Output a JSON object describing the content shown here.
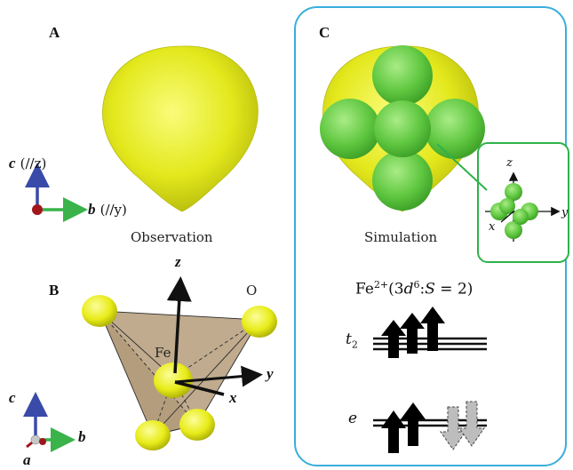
{
  "panel_a": {
    "letter": "A",
    "caption": "Observation",
    "axis_c": "c",
    "axis_c_note": "(//z)",
    "axis_b": "b",
    "axis_b_note": "(//y)",
    "colors": {
      "orbital": "#e6ea1e",
      "axis_vertical": "#3a4aa8",
      "axis_horizontal": "#39b34a",
      "origin": "#a0161c"
    }
  },
  "panel_b": {
    "letter": "B",
    "label_fe": "Fe",
    "label_o": "O",
    "axis_z": "z",
    "axis_y": "y",
    "axis_x": "x",
    "axis_c": "c",
    "axis_b": "b",
    "axis_a": "a",
    "colors": {
      "tetrahedron": "#b9a282",
      "atom": "#f0f020"
    }
  },
  "panel_c": {
    "letter": "C",
    "caption": "Simulation",
    "inset": {
      "axis_z": "z",
      "axis_y": "y",
      "axis_x": "x"
    },
    "configuration": {
      "ion": "Fe",
      "charge": "2+",
      "open": "(3",
      "orbital": "d",
      "count": "6",
      "sep": ":",
      "spin": "S",
      "equals": " = 2)"
    },
    "level_t2": {
      "label": "t",
      "sub": "2"
    },
    "level_e": {
      "label": "e"
    },
    "colors": {
      "frame": "#3aaedc",
      "inset_frame": "#2db24a",
      "lobe": "#6cd04a",
      "spin_up": "#000000",
      "spin_down": "#bdbdbd"
    }
  }
}
